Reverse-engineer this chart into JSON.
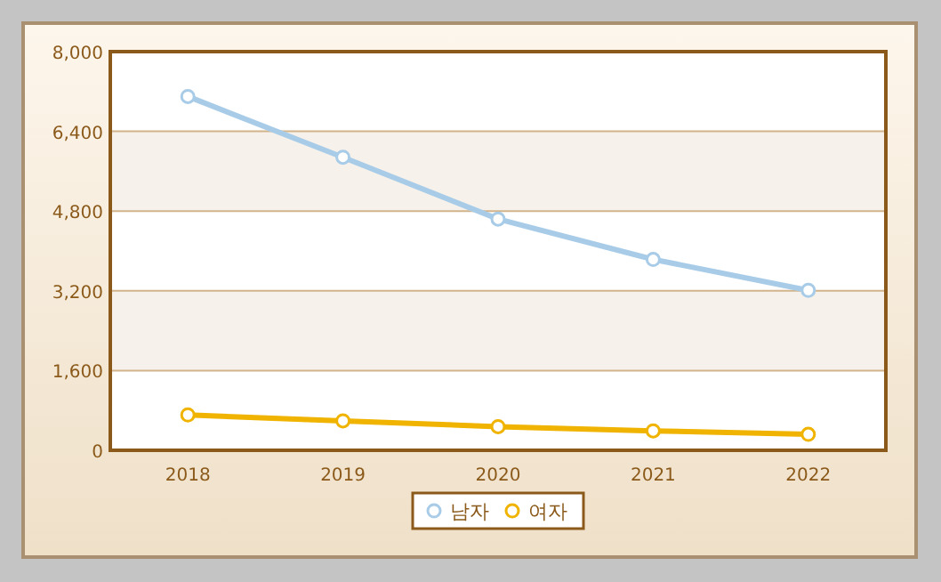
{
  "chart_data": {
    "type": "line",
    "categories": [
      "2018",
      "2019",
      "2020",
      "2021",
      "2022"
    ],
    "series": [
      {
        "name": "남자",
        "color": "#a8cce8",
        "values": [
          7100,
          5880,
          4640,
          3830,
          3210
        ]
      },
      {
        "name": "여자",
        "color": "#f0b400",
        "values": [
          710,
          590,
          475,
          390,
          320
        ]
      }
    ],
    "ylim": [
      0,
      8000
    ],
    "yticks": [
      {
        "value": 0,
        "label": "0"
      },
      {
        "value": 1600,
        "label": "1,600"
      },
      {
        "value": 3200,
        "label": "3,200"
      },
      {
        "value": 4800,
        "label": "4,800"
      },
      {
        "value": 6400,
        "label": "6,400"
      },
      {
        "value": 8000,
        "label": "8,000"
      }
    ],
    "grid": "y",
    "legend": "bottom",
    "marker": "circle",
    "line_style": "solid"
  }
}
